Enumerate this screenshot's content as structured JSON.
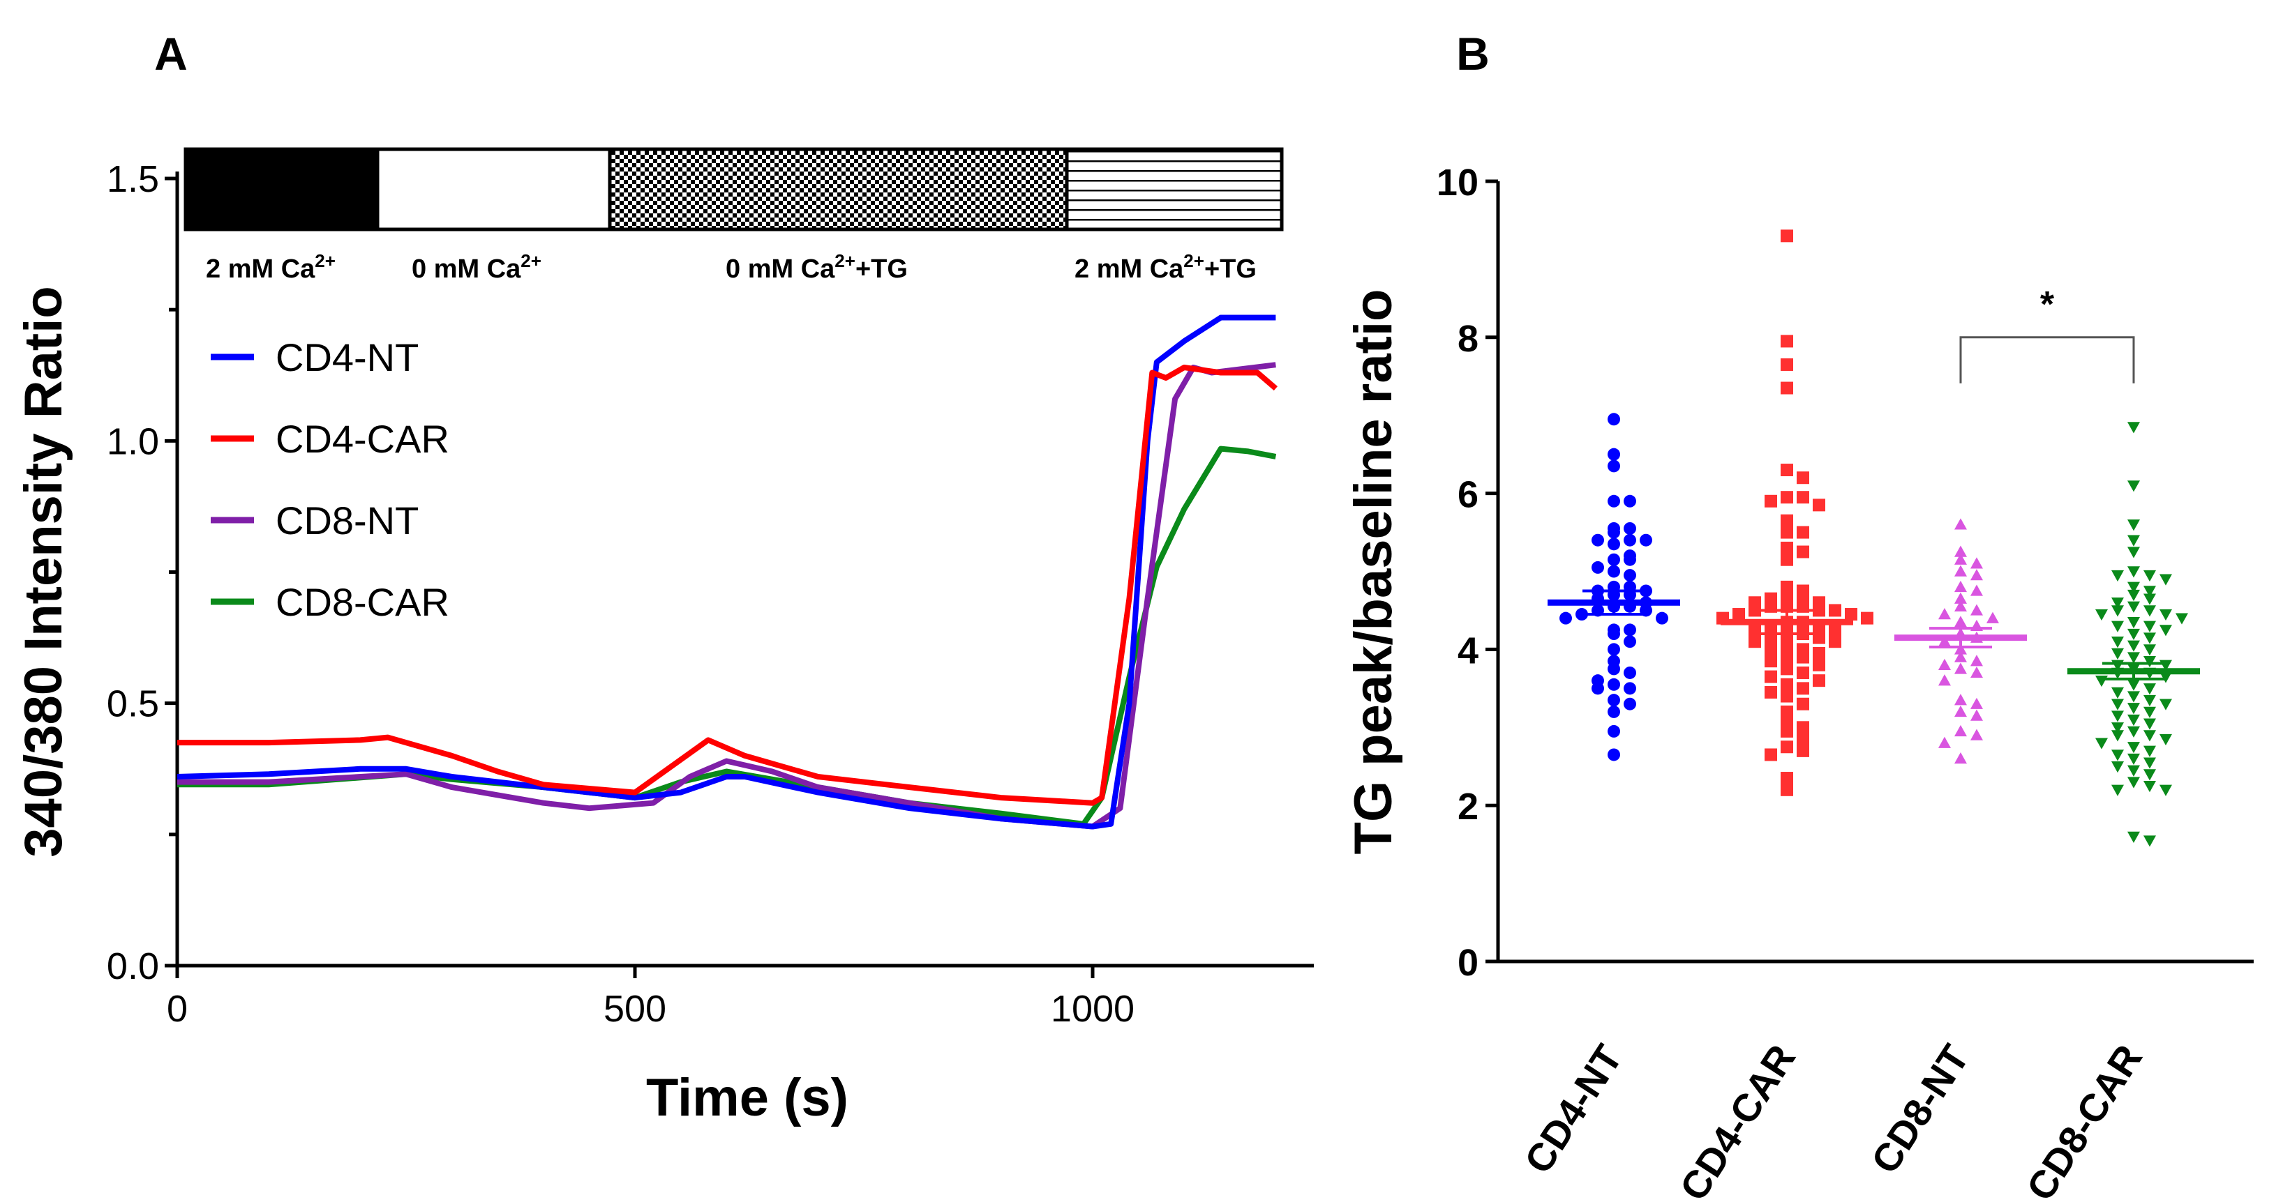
{
  "panel_labels": {
    "a": "A",
    "b": "B"
  },
  "chart_data": [
    {
      "type": "line",
      "panel": "A",
      "xlabel": "Time (s)",
      "ylabel": "340/380 Intensity Ratio",
      "xlim": [
        0,
        1250
      ],
      "ylim": [
        0,
        1.5
      ],
      "xticks": [
        "0",
        "500",
        "1000"
      ],
      "xtick_values": [
        0,
        500,
        1000
      ],
      "yticks": [
        "0.0",
        "0.5",
        "1.0",
        "1.5"
      ],
      "ytick_values": [
        0,
        0.5,
        1.0,
        1.5
      ],
      "yminor_ticks": [
        0.25,
        0.75,
        1.25
      ],
      "legend_position": "upper-left",
      "conditions": [
        {
          "pre": "2 mM Ca",
          "sup": "2+",
          "post": "",
          "start": 0,
          "end": 230,
          "pattern": "solid-black"
        },
        {
          "pre": "0 mM Ca",
          "sup": "2+",
          "post": "",
          "start": 230,
          "end": 495,
          "pattern": "white"
        },
        {
          "pre": "0 mM Ca",
          "sup": "2+",
          "post": "+TG",
          "start": 495,
          "end": 1000,
          "pattern": "checker"
        },
        {
          "pre": "2 mM Ca",
          "sup": "2+",
          "post": "+TG",
          "start": 1000,
          "end": 1240,
          "pattern": "horizontal-lines"
        }
      ],
      "series": [
        {
          "name": "CD4-NT",
          "color": "#0000ff",
          "x": [
            0,
            100,
            200,
            250,
            300,
            400,
            500,
            550,
            600,
            620,
            700,
            800,
            900,
            1000,
            1020,
            1040,
            1060,
            1070,
            1100,
            1140,
            1200
          ],
          "y": [
            0.36,
            0.365,
            0.375,
            0.375,
            0.36,
            0.34,
            0.32,
            0.33,
            0.36,
            0.36,
            0.33,
            0.3,
            0.28,
            0.265,
            0.27,
            0.5,
            1.0,
            1.15,
            1.19,
            1.235,
            1.235
          ]
        },
        {
          "name": "CD4-CAR",
          "color": "#ff0000",
          "x": [
            0,
            100,
            200,
            230,
            300,
            350,
            400,
            500,
            540,
            580,
            620,
            700,
            800,
            900,
            1000,
            1010,
            1040,
            1065,
            1080,
            1100,
            1140,
            1180,
            1200
          ],
          "y": [
            0.425,
            0.425,
            0.43,
            0.435,
            0.4,
            0.37,
            0.345,
            0.33,
            0.38,
            0.43,
            0.4,
            0.36,
            0.34,
            0.32,
            0.31,
            0.32,
            0.7,
            1.13,
            1.12,
            1.14,
            1.13,
            1.13,
            1.1
          ]
        },
        {
          "name": "CD8-NT",
          "color": "#7f1fa8",
          "x": [
            0,
            100,
            250,
            300,
            400,
            450,
            520,
            560,
            600,
            650,
            700,
            800,
            900,
            1000,
            1030,
            1060,
            1090,
            1110,
            1130,
            1200
          ],
          "y": [
            0.35,
            0.35,
            0.365,
            0.34,
            0.31,
            0.3,
            0.31,
            0.36,
            0.39,
            0.37,
            0.34,
            0.31,
            0.28,
            0.265,
            0.3,
            0.7,
            1.08,
            1.14,
            1.13,
            1.145
          ]
        },
        {
          "name": "CD8-CAR",
          "color": "#0a8a1a",
          "x": [
            0,
            100,
            250,
            300,
            400,
            500,
            550,
            600,
            700,
            800,
            900,
            990,
            1010,
            1040,
            1070,
            1100,
            1140,
            1170,
            1200
          ],
          "y": [
            0.345,
            0.345,
            0.365,
            0.355,
            0.34,
            0.32,
            0.35,
            0.37,
            0.34,
            0.31,
            0.29,
            0.27,
            0.32,
            0.55,
            0.76,
            0.87,
            0.985,
            0.98,
            0.97
          ]
        }
      ]
    },
    {
      "type": "scatter",
      "panel": "B",
      "ylabel": "TG peak/baseline ratio",
      "ylim": [
        0,
        10
      ],
      "yticks": [
        "0",
        "2",
        "4",
        "6",
        "8",
        "10"
      ],
      "ytick_values": [
        0,
        2,
        4,
        6,
        8,
        10
      ],
      "categories": [
        "CD4-NT",
        "CD4-CAR",
        "CD8-NT",
        "CD8-CAR"
      ],
      "significance": {
        "from": "CD8-NT",
        "to": "CD8-CAR",
        "label": "*",
        "bracket_y": 8.0
      },
      "series": [
        {
          "name": "CD4-NT",
          "color": "#0000ff",
          "marker": "circle",
          "mean": 4.6,
          "sem": 0.15,
          "values": [
            6.95,
            6.5,
            6.35,
            5.9,
            5.9,
            5.55,
            5.55,
            5.5,
            5.4,
            5.4,
            5.4,
            5.35,
            5.2,
            5.15,
            5.15,
            5.05,
            5.0,
            4.95,
            4.8,
            4.8,
            4.75,
            4.75,
            4.7,
            4.7,
            4.65,
            4.6,
            4.55,
            4.55,
            4.5,
            4.5,
            4.45,
            4.4,
            4.4,
            4.25,
            4.25,
            4.2,
            4.1,
            4.0,
            3.85,
            3.75,
            3.7,
            3.6,
            3.55,
            3.5,
            3.5,
            3.35,
            3.3,
            3.2,
            2.95,
            2.65
          ]
        },
        {
          "name": "CD4-CAR",
          "color": "#ff3030",
          "marker": "square",
          "mean": 4.35,
          "sem": 0.15,
          "values": [
            9.3,
            7.95,
            7.65,
            7.35,
            6.3,
            6.2,
            5.95,
            5.95,
            5.9,
            5.85,
            5.65,
            5.5,
            5.5,
            5.3,
            5.25,
            5.15,
            4.8,
            4.75,
            4.7,
            4.7,
            4.65,
            4.6,
            4.6,
            4.55,
            4.55,
            4.55,
            4.5,
            4.5,
            4.5,
            4.45,
            4.45,
            4.4,
            4.4,
            4.35,
            4.35,
            4.3,
            4.3,
            4.25,
            4.25,
            4.2,
            4.2,
            4.15,
            4.15,
            4.1,
            4.1,
            4.05,
            4.0,
            4.0,
            3.95,
            3.9,
            3.9,
            3.85,
            3.8,
            3.75,
            3.7,
            3.65,
            3.6,
            3.55,
            3.5,
            3.45,
            3.4,
            3.3,
            3.2,
            3.1,
            3.0,
            2.95,
            2.85,
            2.75,
            2.7,
            2.65,
            2.35,
            2.2
          ]
        },
        {
          "name": "CD8-NT",
          "color": "#d955e0",
          "marker": "triangle-up",
          "mean": 4.15,
          "sem": 0.12,
          "values": [
            5.6,
            5.25,
            5.15,
            5.1,
            5.0,
            4.95,
            4.8,
            4.75,
            4.65,
            4.55,
            4.5,
            4.45,
            4.4,
            4.35,
            4.3,
            4.2,
            4.15,
            4.1,
            4.0,
            3.9,
            3.85,
            3.8,
            3.75,
            3.7,
            3.6,
            3.35,
            3.3,
            3.2,
            3.15,
            2.95,
            2.9,
            2.8,
            2.6
          ]
        },
        {
          "name": "CD8-CAR",
          "color": "#0a8a1a",
          "marker": "triangle-down",
          "mean": 3.72,
          "sem": 0.1,
          "values": [
            6.85,
            6.1,
            5.6,
            5.4,
            5.25,
            5.0,
            4.95,
            4.95,
            4.9,
            4.8,
            4.75,
            4.7,
            4.65,
            4.6,
            4.55,
            4.5,
            4.5,
            4.45,
            4.45,
            4.4,
            4.35,
            4.3,
            4.3,
            4.25,
            4.2,
            4.15,
            4.1,
            4.05,
            4.0,
            3.95,
            3.9,
            3.85,
            3.8,
            3.8,
            3.75,
            3.7,
            3.7,
            3.65,
            3.6,
            3.55,
            3.5,
            3.45,
            3.4,
            3.35,
            3.3,
            3.3,
            3.25,
            3.2,
            3.15,
            3.1,
            3.05,
            3.0,
            2.95,
            2.9,
            2.9,
            2.85,
            2.8,
            2.75,
            2.7,
            2.65,
            2.6,
            2.55,
            2.5,
            2.45,
            2.4,
            2.3,
            2.25,
            2.2,
            2.2,
            1.6,
            1.55
          ]
        }
      ]
    }
  ]
}
